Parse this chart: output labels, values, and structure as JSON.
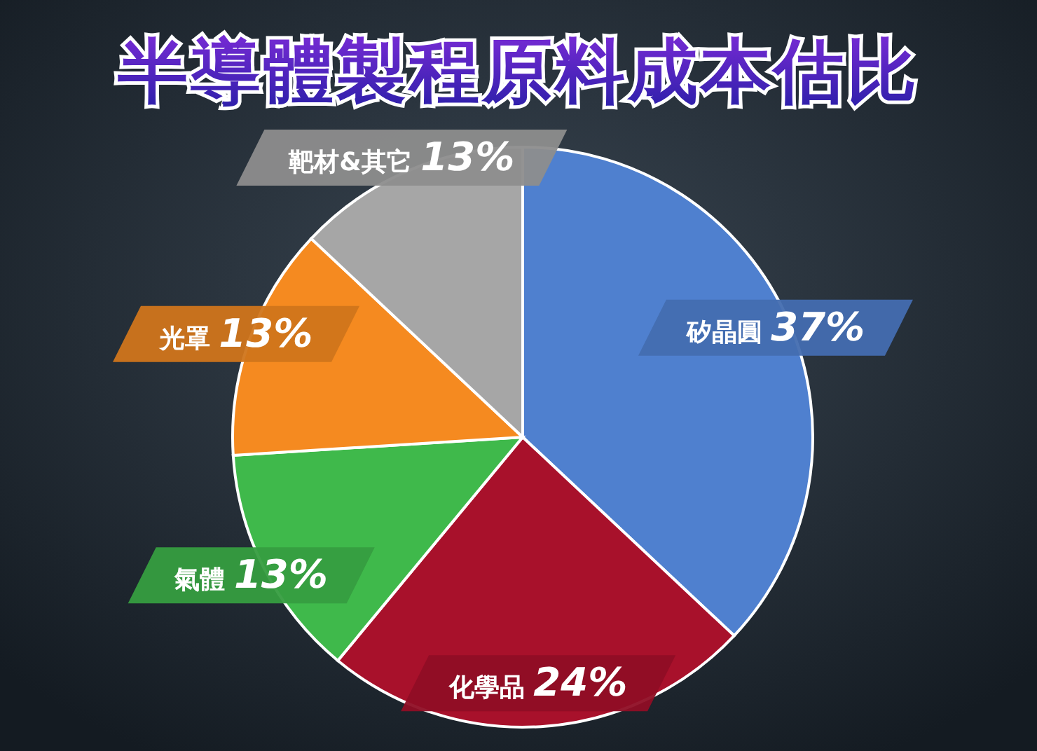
{
  "chart_data": {
    "type": "pie",
    "title": "半導體製程原料成本估比",
    "categories": [
      "矽晶圓",
      "化學品",
      "氣體",
      "光罩",
      "靶材&其它"
    ],
    "values": [
      37,
      24,
      13,
      13,
      13
    ],
    "value_labels": [
      "37%",
      "24%",
      "13%",
      "13%",
      "13%"
    ],
    "colors": [
      "#4f80cf",
      "#a8112b",
      "#3fb94b",
      "#f58a20",
      "#a6a6a6"
    ],
    "legend": false
  }
}
